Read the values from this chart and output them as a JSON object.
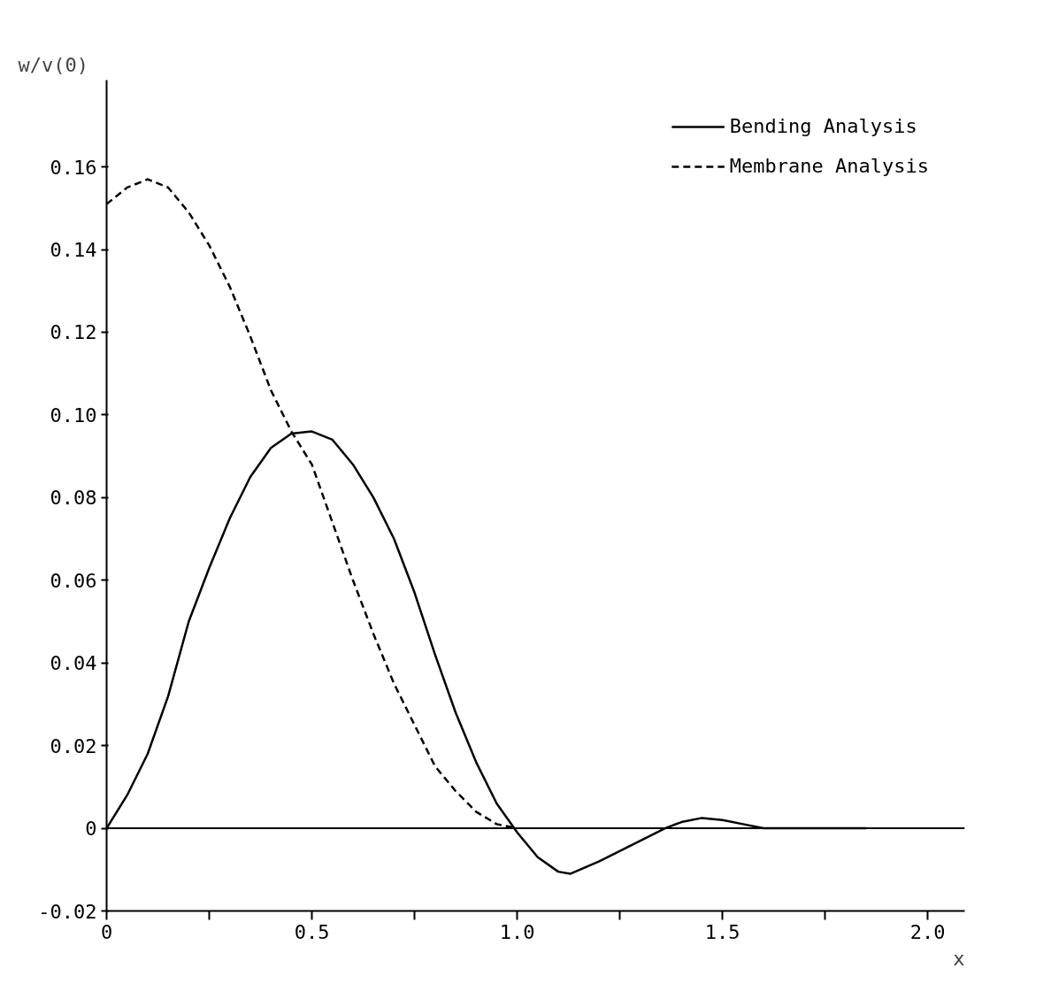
{
  "chart_data": {
    "type": "line",
    "xlabel": "x",
    "ylabel": "w/v(0)",
    "xlim": [
      0,
      2.09
    ],
    "ylim": [
      -0.02,
      0.181
    ],
    "xticks": [
      0,
      {
        "value": 0.25,
        "label": null
      },
      0.5,
      {
        "value": 0.75,
        "label": null
      },
      {
        "value": 1.0,
        "label": "1.0"
      },
      {
        "value": 1.25,
        "label": null
      },
      1.5,
      {
        "value": 1.75,
        "label": null
      },
      {
        "value": 2.0,
        "label": "2.0"
      }
    ],
    "yticks": [
      -0.02,
      0,
      0.02,
      0.04,
      0.06,
      0.08,
      {
        "value": 0.1,
        "label": "0.10"
      },
      0.12,
      0.14,
      0.16
    ],
    "grid": false,
    "legend": "top right",
    "marker": "none",
    "ref_lines": [
      {
        "axis": "y",
        "value": 0,
        "label": null
      }
    ],
    "series": [
      {
        "name": "Bending Analysis",
        "color": "#000000",
        "line_style": "solid",
        "x": [
          0,
          0.05,
          0.1,
          0.15,
          0.2,
          0.25,
          0.3,
          0.35,
          0.4,
          0.45,
          0.5,
          0.55,
          0.6,
          0.65,
          0.7,
          0.75,
          0.8,
          0.85,
          0.9,
          0.95,
          1.0,
          1.05,
          1.1,
          1.13,
          1.2,
          1.3,
          1.36,
          1.4,
          1.45,
          1.5,
          1.55,
          1.6,
          1.85
        ],
        "values": [
          0,
          0.008,
          0.018,
          0.032,
          0.05,
          0.063,
          0.075,
          0.085,
          0.092,
          0.0955,
          0.096,
          0.094,
          0.088,
          0.08,
          0.07,
          0.057,
          0.042,
          0.028,
          0.016,
          0.006,
          -0.001,
          -0.007,
          -0.0105,
          -0.011,
          -0.008,
          -0.003,
          0,
          0.0015,
          0.0025,
          0.002,
          0.001,
          0,
          0
        ]
      },
      {
        "name": "Membrane Analysis",
        "color": "#000000",
        "line_style": "dashed",
        "x": [
          0,
          0.05,
          0.1,
          0.15,
          0.2,
          0.25,
          0.3,
          0.35,
          0.4,
          0.45,
          0.5,
          0.55,
          0.6,
          0.65,
          0.7,
          0.75,
          0.8,
          0.85,
          0.9,
          0.95,
          1.0
        ],
        "values": [
          0.151,
          0.155,
          0.157,
          0.155,
          0.149,
          0.141,
          0.131,
          0.119,
          0.106,
          0.096,
          0.088,
          0.074,
          0.06,
          0.047,
          0.035,
          0.025,
          0.015,
          0.009,
          0.004,
          0.001,
          0
        ]
      }
    ]
  }
}
